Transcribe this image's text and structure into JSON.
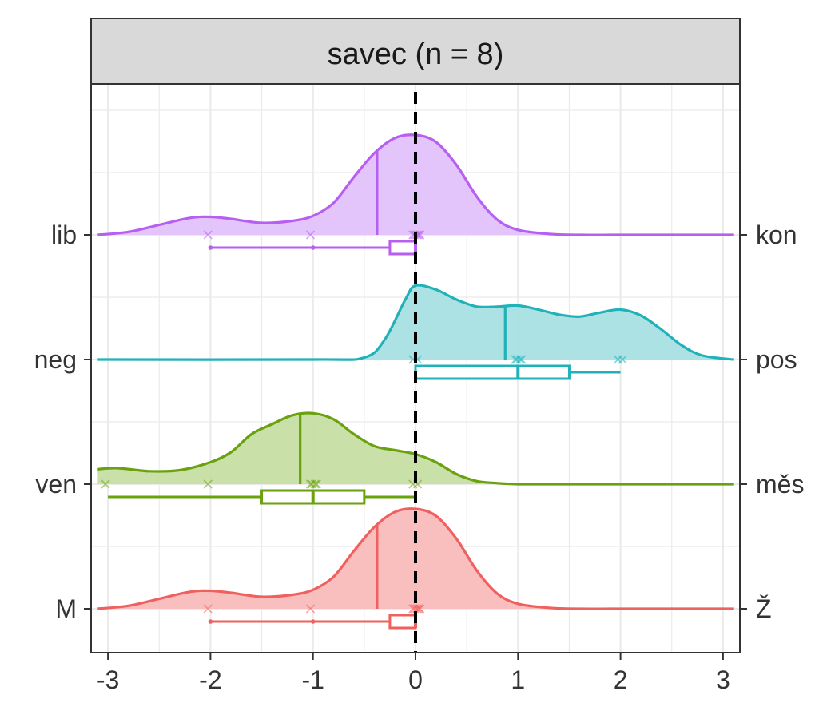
{
  "chart_data": {
    "type": "ridgeline",
    "title": "savec (n = 8)",
    "xlabel": "",
    "ylabel": "",
    "xlim": [
      -3.1,
      3.1
    ],
    "x_ticks": [
      "-3",
      "-2",
      "-1",
      "0",
      "1",
      "2",
      "3"
    ],
    "x_tick_values": [
      -3,
      -2,
      -1,
      0,
      1,
      2,
      3
    ],
    "reference_line_x": 0,
    "grid": true,
    "rows": [
      {
        "left_label": "lib",
        "right_label": "kon",
        "color": "#B75FF0",
        "fill": "#E1BFFB",
        "mean": -0.375,
        "points": [
          -2,
          -1,
          0,
          0,
          0,
          0,
          0,
          0
        ],
        "box": {
          "min": -2,
          "q1": -0.25,
          "median": 0,
          "q3": 0,
          "max": 0
        },
        "outliers": [
          -2,
          -1
        ],
        "density_x": [
          -3.1,
          -2.8,
          -2.5,
          -2.2,
          -2.0,
          -1.8,
          -1.5,
          -1.2,
          -1.0,
          -0.8,
          -0.6,
          -0.4,
          -0.2,
          0,
          0.2,
          0.4,
          0.6,
          0.8,
          1.0,
          1.3,
          1.6,
          2.0,
          2.5,
          3.1
        ],
        "density_y": [
          0.0,
          0.03,
          0.1,
          0.17,
          0.18,
          0.16,
          0.12,
          0.14,
          0.19,
          0.32,
          0.58,
          0.82,
          0.97,
          1.0,
          0.93,
          0.7,
          0.38,
          0.15,
          0.05,
          0.01,
          0.0,
          0.0,
          0.0,
          0.0
        ]
      },
      {
        "left_label": "neg",
        "right_label": "pos",
        "color": "#1FB2B8",
        "fill": "#A6E0E3",
        "mean": 0.875,
        "points": [
          0,
          0,
          1,
          1,
          1,
          1,
          2,
          2
        ],
        "box": {
          "min": 0,
          "q1": 0,
          "median": 1,
          "q3": 1.5,
          "max": 2
        },
        "outliers": [],
        "density_x": [
          -3.1,
          -1.0,
          -0.5,
          -0.3,
          -0.1,
          0,
          0.2,
          0.4,
          0.6,
          0.8,
          1.0,
          1.2,
          1.4,
          1.6,
          1.8,
          2.0,
          2.2,
          2.4,
          2.6,
          2.8,
          3.1
        ],
        "density_y": [
          0.0,
          0.0,
          0.02,
          0.2,
          0.6,
          0.74,
          0.7,
          0.6,
          0.53,
          0.53,
          0.54,
          0.5,
          0.45,
          0.43,
          0.47,
          0.5,
          0.44,
          0.3,
          0.14,
          0.04,
          0.0
        ]
      },
      {
        "left_label": "ven",
        "right_label": "měs",
        "color": "#6AA10F",
        "fill": "#C4DDA1",
        "mean": -1.125,
        "points": [
          -3,
          -2,
          -1,
          -1,
          -1,
          -1,
          0,
          0
        ],
        "box": {
          "min": -3,
          "q1": -1.5,
          "median": -1,
          "q3": -0.5,
          "max": 0
        },
        "outliers": [],
        "density_x": [
          -3.1,
          -2.9,
          -2.6,
          -2.3,
          -2.0,
          -1.8,
          -1.6,
          -1.4,
          -1.2,
          -1.0,
          -0.8,
          -0.6,
          -0.4,
          -0.2,
          0,
          0.2,
          0.4,
          0.6,
          0.8,
          1.0,
          1.3,
          3.1
        ],
        "density_y": [
          0.15,
          0.16,
          0.13,
          0.14,
          0.22,
          0.32,
          0.5,
          0.6,
          0.69,
          0.71,
          0.65,
          0.5,
          0.38,
          0.34,
          0.3,
          0.22,
          0.1,
          0.03,
          0.01,
          0.0,
          0.0,
          0.0
        ]
      },
      {
        "left_label": "M",
        "right_label": "Ž",
        "color": "#F0605F",
        "fill": "#F8BAB8",
        "mean": -0.375,
        "points": [
          -2,
          -1,
          0,
          0,
          0,
          0,
          0,
          0
        ],
        "box": {
          "min": -2,
          "q1": -0.25,
          "median": 0,
          "q3": 0,
          "max": 0
        },
        "outliers": [
          -2,
          -1
        ],
        "density_x": [
          -3.1,
          -2.8,
          -2.5,
          -2.2,
          -2.0,
          -1.8,
          -1.5,
          -1.2,
          -1.0,
          -0.8,
          -0.6,
          -0.4,
          -0.2,
          0,
          0.2,
          0.4,
          0.6,
          0.8,
          1.0,
          1.3,
          1.6,
          2.0,
          2.5,
          3.1
        ],
        "density_y": [
          0.0,
          0.03,
          0.1,
          0.17,
          0.18,
          0.16,
          0.12,
          0.14,
          0.19,
          0.32,
          0.58,
          0.82,
          0.97,
          1.0,
          0.93,
          0.7,
          0.38,
          0.15,
          0.05,
          0.01,
          0.0,
          0.0,
          0.0,
          0.0
        ]
      }
    ]
  }
}
